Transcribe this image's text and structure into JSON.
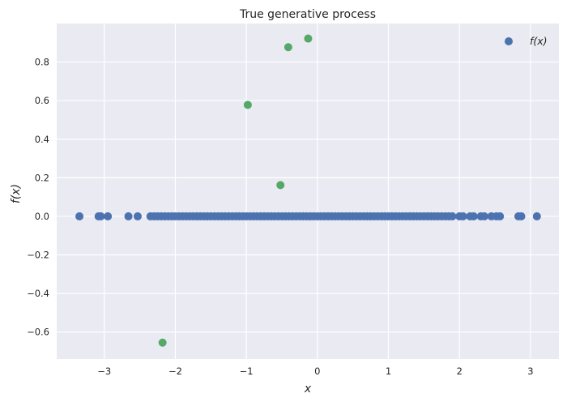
{
  "chart_data": {
    "type": "scatter",
    "title": "True generative process",
    "xlabel": "x",
    "ylabel": "f(x)",
    "xlim": [
      -3.67,
      3.4
    ],
    "ylim": [
      -0.74,
      1.0
    ],
    "xticks": [
      -3,
      -2,
      -1,
      0,
      1,
      2,
      3
    ],
    "yticks": [
      -0.6,
      -0.4,
      -0.2,
      0.0,
      0.2,
      0.4,
      0.6,
      0.8
    ],
    "ytick_labels": [
      "−0.6",
      "−0.4",
      "−0.2",
      "0.0",
      "0.2",
      "0.4",
      "0.6",
      "0.8"
    ],
    "xtick_labels": [
      "−3",
      "−2",
      "−1",
      "0",
      "1",
      "2",
      "3"
    ],
    "grid": true,
    "legend": {
      "placement": "top-right",
      "entries": [
        "f(x)"
      ]
    },
    "series": [
      {
        "name": "f(x)",
        "color": "#4c72b0",
        "x": [
          -3.35,
          -3.08,
          -3.05,
          -2.95,
          -2.66,
          -2.53,
          -2.35,
          -2.3,
          -2.25,
          -2.2,
          -2.15,
          -2.1,
          -2.05,
          -2.0,
          -1.95,
          -1.9,
          -1.85,
          -1.8,
          -1.75,
          -1.7,
          -1.65,
          -1.6,
          -1.55,
          -1.5,
          -1.45,
          -1.4,
          -1.35,
          -1.3,
          -1.25,
          -1.2,
          -1.15,
          -1.1,
          -1.05,
          -1.0,
          -0.95,
          -0.9,
          -0.85,
          -0.8,
          -0.75,
          -0.7,
          -0.65,
          -0.6,
          -0.55,
          -0.5,
          -0.45,
          -0.4,
          -0.35,
          -0.3,
          -0.25,
          -0.2,
          -0.15,
          -0.1,
          -0.05,
          0.0,
          0.05,
          0.1,
          0.15,
          0.2,
          0.25,
          0.3,
          0.35,
          0.4,
          0.45,
          0.5,
          0.55,
          0.6,
          0.65,
          0.7,
          0.75,
          0.8,
          0.85,
          0.9,
          0.95,
          1.0,
          1.05,
          1.1,
          1.15,
          1.2,
          1.25,
          1.3,
          1.35,
          1.4,
          1.45,
          1.5,
          1.55,
          1.6,
          1.65,
          1.7,
          1.75,
          1.8,
          1.85,
          1.9,
          2.0,
          2.05,
          2.15,
          2.2,
          2.3,
          2.35,
          2.45,
          2.52,
          2.57,
          2.83,
          2.87,
          3.09
        ],
        "y_constant": 0.0
      },
      {
        "name": "",
        "color": "#55a868",
        "x": [
          -2.18,
          -0.98,
          -0.52,
          -0.41,
          -0.13
        ],
        "y": [
          -0.655,
          0.578,
          0.162,
          0.877,
          0.922
        ]
      }
    ]
  }
}
